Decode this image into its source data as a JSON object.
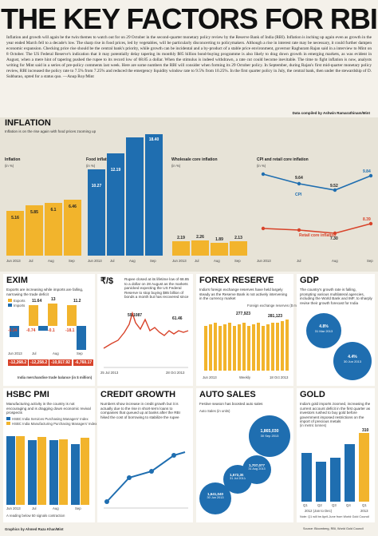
{
  "title": "THE KEY FACTORS FOR RBI",
  "intro": "Inflation and growth will again be the twin themes to watch out for on 29 October in the second-quarter monetary policy review by the Reserve Bank of India (RBI). Inflation is inching up again even as growth in the year ended March fell to a decade's low. The sharp rise in food prices, led by vegetables, will be particularly disconcerting to policymakers. Although a rise in interest rate may be necessary, it could further dampen economic expansion. Checking price rise should be the central bank's priority, while growth can be incidental and a by-product of a stable price environment, governor Raghuram Rajan said in a interview to Mint on 8 October. The US Federal Reserve's indication that it may potentially delay tapering its monthly $85 billion bond-buying programme is also likely to drag down growth in emerging markets, as was evident in August, when a mere hint of tapering pushed the rupee to its record low of 68.85 a dollar. When the stimulus is indeed withdrawn, a rate cut could become inevitable. The time to fight inflation is now, analysts writing for Mint said in a series of pre-policy comments last week. Here are some numbers the RBI will consider when forming its 29 October policy. In September, during Rajan's first mid-quarter monetary policy review, RBI increased the policy rate to 7.5% from 7.25% and reduced the emergency liquidity window rate to 9.5% from 10.25%. In the first quarter policy in July, the central bank, then under the stewardship of D. Subbarao, opted for a status quo. —Anup Roy/Mint",
  "compiled_by": "Data compiled by Ashwin Ramarathinam/Mint",
  "inflation": {
    "header": "INFLATION",
    "subtitle": "Inflation is on the rise again with food prices zooming up",
    "wpi": {
      "label": "Inflation",
      "unit": "(in %)",
      "categories": [
        "Jun 2013",
        "Jul",
        "Aug",
        "Sep"
      ],
      "values": [
        "5.16",
        "5.85",
        "6.1",
        "6.46"
      ]
    },
    "food": {
      "label": "Food inflation",
      "unit": "(in %)",
      "categories": [
        "Jun 2013",
        "Jul",
        "Aug",
        "Sep"
      ],
      "values": [
        "10.27",
        "12.19",
        "",
        "18.40"
      ]
    },
    "core": {
      "label": "Wholesale core inflation",
      "unit": "(in %)",
      "categories": [
        "Jun 2013",
        "Jul",
        "Aug",
        "Sep"
      ],
      "values": [
        "2.19",
        "2.26",
        "1.89",
        "2.13"
      ]
    },
    "cpi": {
      "label": "CPI and retail core inflation",
      "unit": "(in %)",
      "categories": [
        "Jun 2013",
        "Jul",
        "Aug",
        "Sep"
      ],
      "cpi_values": [
        "9.87",
        "9.64",
        "9.52",
        "9.84"
      ],
      "retail_values": [
        "8.20",
        "",
        "7.30",
        "8.39"
      ],
      "cpi_name": "CPI",
      "retail_name": "Retail core inflation"
    }
  },
  "exim": {
    "header": "EXIM",
    "subtitle": "Exports are increasing while imports are falling, narrowing the trade deficit",
    "legend": [
      "Exports",
      "Imports"
    ],
    "unit": "(in %)",
    "categories": [
      "Jun 2013",
      "Jul",
      "Aug",
      "Sep"
    ],
    "tops": [
      "",
      "11.64",
      "13",
      "11.2"
    ],
    "bottoms": [
      "-5.34",
      "-0.74",
      "-0.1",
      "-18.1"
    ],
    "trade_label": "India merchandise trade balance (in $ million)",
    "trade": [
      "-12,268.2",
      "-12,258.2",
      "-10,917.92",
      "-6,760.17"
    ]
  },
  "rupee": {
    "header": "₹/$",
    "subtitle": "Rupee closed at its lifetime low of 68.85 to a dollar on 28 August as the markets panicked expecting the US Federal Reserve to stop buying $85 billion of bonds a month but has recovered since",
    "start": "59.1087",
    "end": "61.46",
    "end2": "61.49",
    "x_labels": [
      "25 Jul 2013",
      "28 Oct 2013"
    ]
  },
  "forex": {
    "header": "FOREX RESERVE",
    "subtitle": "India's foreign exchange reserves have held largely steady as the Reserve Bank is not actively intervening in the currency market",
    "unit": "Foreign exchange reserves ($ million)",
    "v1": "277,923",
    "v2": "281,123",
    "x_labels": [
      "Jun 2013",
      "Weekly",
      "18 Oct 2013"
    ]
  },
  "gdp": {
    "header": "GDP",
    "subtitle": "The country's growth rate is falling, prompting various multilateral agencies, including the World Bank and IMF, to sharply revise their growth forecast for India",
    "b1": "4.8%",
    "b1_date": "31 Mar 2013",
    "b2": "4.4%",
    "b2_date": "30 Jun 2013"
  },
  "hsbc": {
    "header": "HSBC PMI",
    "subtitle": "Manufacturing activity in the country is not encouraging and is dragging down economic revival prospects",
    "legend": [
      "HSBC India Services Purchasing Managers' Index",
      "HSBC India Manufacturing Purchasing Managers' Index"
    ],
    "categories": [
      "Jun 2013",
      "Jul",
      "Aug",
      "Sep"
    ],
    "services": [
      "",
      "47.9",
      "",
      "44.6"
    ],
    "manufacturing": [
      "50.3",
      "50.1",
      "",
      "49.6"
    ],
    "note": "A reading below 50 signals contraction"
  },
  "credit": {
    "header": "CREDIT GROWTH",
    "subtitle": "Numbers show increase in credit growth but it is actually due to the rise in short-term loans to companies that queued up at banks after the RBI hiked the cost of borrowing to stabilize the rupee"
  },
  "auto": {
    "header": "AUTO SALES",
    "subtitle": "Festive season has boosted auto sales",
    "unit": "Auto Sales (in units)",
    "values": [
      "1,641,040",
      "1,572,300",
      "1,707,077",
      "1,865,030"
    ],
    "dates": [
      "30 Jun 2013",
      "31 Jul 2013",
      "31 Aug 2013",
      "30 Sep 2013"
    ]
  },
  "goldsec": {
    "header": "GOLD",
    "subtitle": "India's gold imports zoomed, increasing the current account deficit in the first quarter as investors rushed to buy gold before government imposed restrictions on the import of precious metals",
    "unit": "(in metric tonnes)",
    "categories": [
      "Q1",
      "Q2",
      "Q3",
      "Q4",
      "Q1"
    ],
    "values": [
      "",
      "",
      "",
      "",
      "310"
    ],
    "bottom_labels": [
      "2012 (Jan to Dec)",
      "2013"
    ],
    "note": "Note: Q1 will be April-June from World Gold Council"
  },
  "footer": {
    "graphics": "Graphics by Ahmed Raza Khan/Mint",
    "sources": "Source: Bloomberg, RBI, World Gold Council"
  }
}
